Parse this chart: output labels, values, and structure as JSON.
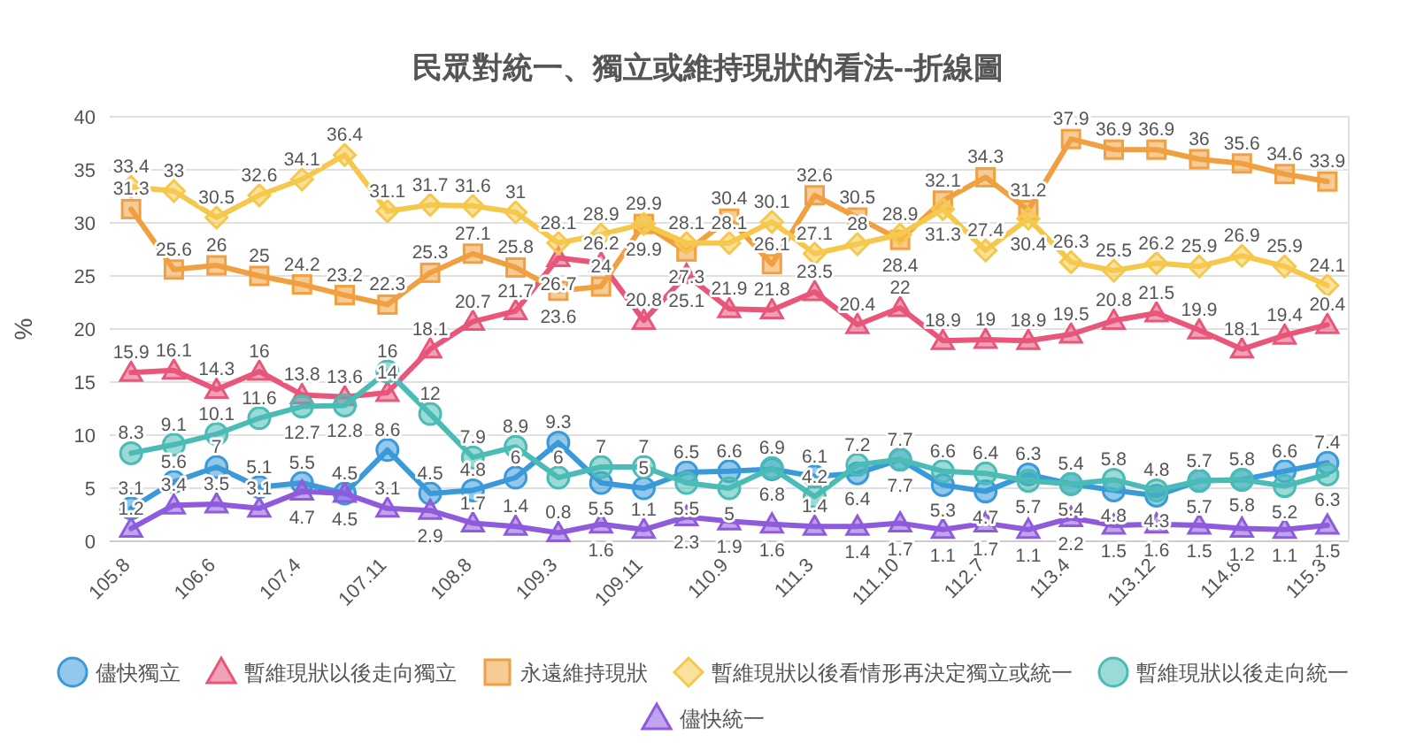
{
  "chart_data": {
    "type": "line",
    "title": "民眾對統一、獨立或維持現狀的看法--折線圖",
    "ylabel": "%",
    "categories": [
      "105.8",
      null,
      "106.6",
      null,
      "107.4",
      null,
      "107.11",
      null,
      "108.8",
      null,
      "109.3",
      null,
      "109.11",
      null,
      "110.9",
      null,
      "111.3",
      null,
      "111.10",
      null,
      "112.7",
      null,
      "113.4",
      null,
      "113.12",
      null,
      "114.8",
      null,
      "115.3"
    ],
    "ylim": [
      0,
      40
    ],
    "yticks": [
      0,
      5,
      10,
      15,
      20,
      25,
      30,
      35,
      40
    ],
    "grid": "y",
    "legend": "bottom",
    "data_labels": true,
    "line_style": "solid",
    "series": [
      {
        "name": "儘快獨立",
        "color": "#3a9ad9",
        "marker": "circle",
        "values": [
          3.1,
          5.6,
          7,
          5.1,
          5.5,
          4.5,
          8.6,
          4.5,
          4.8,
          6,
          9.3,
          5.5,
          5,
          6.5,
          6.6,
          6.8,
          6.1,
          6.4,
          7.7,
          5.3,
          4.7,
          6.3,
          5.4,
          4.8,
          4.3,
          5.7,
          5.8,
          6.6,
          7.4
        ]
      },
      {
        "name": "暫維現狀以後走向獨立",
        "color": "#e8567a",
        "marker": "triangle",
        "values": [
          15.9,
          16.1,
          14.3,
          16,
          13.8,
          13.6,
          14,
          18.1,
          20.7,
          21.7,
          26.7,
          26.2,
          20.8,
          25.1,
          21.9,
          21.8,
          23.5,
          20.4,
          22,
          18.9,
          19,
          18.9,
          19.5,
          20.8,
          21.5,
          19.9,
          18.1,
          19.4,
          20.4
        ]
      },
      {
        "name": "永遠維持現狀",
        "color": "#f0a040",
        "marker": "square",
        "values": [
          31.3,
          25.6,
          26,
          25,
          24.2,
          23.2,
          22.3,
          25.3,
          27.1,
          25.8,
          23.6,
          24,
          29.9,
          27.3,
          30.4,
          26.1,
          32.6,
          30.5,
          28.4,
          32.1,
          34.3,
          31.2,
          37.9,
          36.9,
          36.9,
          36,
          35.6,
          34.6,
          33.9
        ]
      },
      {
        "name": "暫維現狀以後看情形再決定獨立或統一",
        "color": "#f5c84c",
        "marker": "diamond",
        "values": [
          33.4,
          33,
          30.5,
          32.6,
          34.1,
          36.4,
          31.1,
          31.7,
          31.6,
          31,
          28.1,
          28.9,
          29.9,
          28.1,
          28.1,
          30.1,
          27.1,
          28,
          28.9,
          31.3,
          27.4,
          30.4,
          26.3,
          25.5,
          26.2,
          25.9,
          26.9,
          25.9,
          24.1
        ]
      },
      {
        "name": "暫維現狀以後走向統一",
        "color": "#4bbcb5",
        "marker": "circle",
        "values": [
          8.3,
          9.1,
          10.1,
          11.6,
          12.7,
          12.8,
          16,
          12,
          7.9,
          8.9,
          6,
          7,
          7,
          5.5,
          5,
          6.9,
          4.2,
          7.2,
          7.7,
          6.6,
          6.4,
          5.7,
          5.4,
          5.8,
          4.8,
          5.7,
          5.8,
          5.2,
          6.3
        ]
      },
      {
        "name": "儘快統一",
        "color": "#8e5bdc",
        "marker": "triangle",
        "values": [
          1.2,
          3.4,
          3.5,
          3.1,
          4.7,
          4.5,
          3.1,
          2.9,
          1.7,
          1.4,
          0.8,
          1.6,
          1.1,
          2.3,
          1.9,
          1.6,
          1.4,
          1.4,
          1.7,
          1.1,
          1.7,
          1.1,
          2.2,
          1.5,
          1.6,
          1.5,
          1.2,
          1.1,
          1.5
        ]
      }
    ]
  }
}
